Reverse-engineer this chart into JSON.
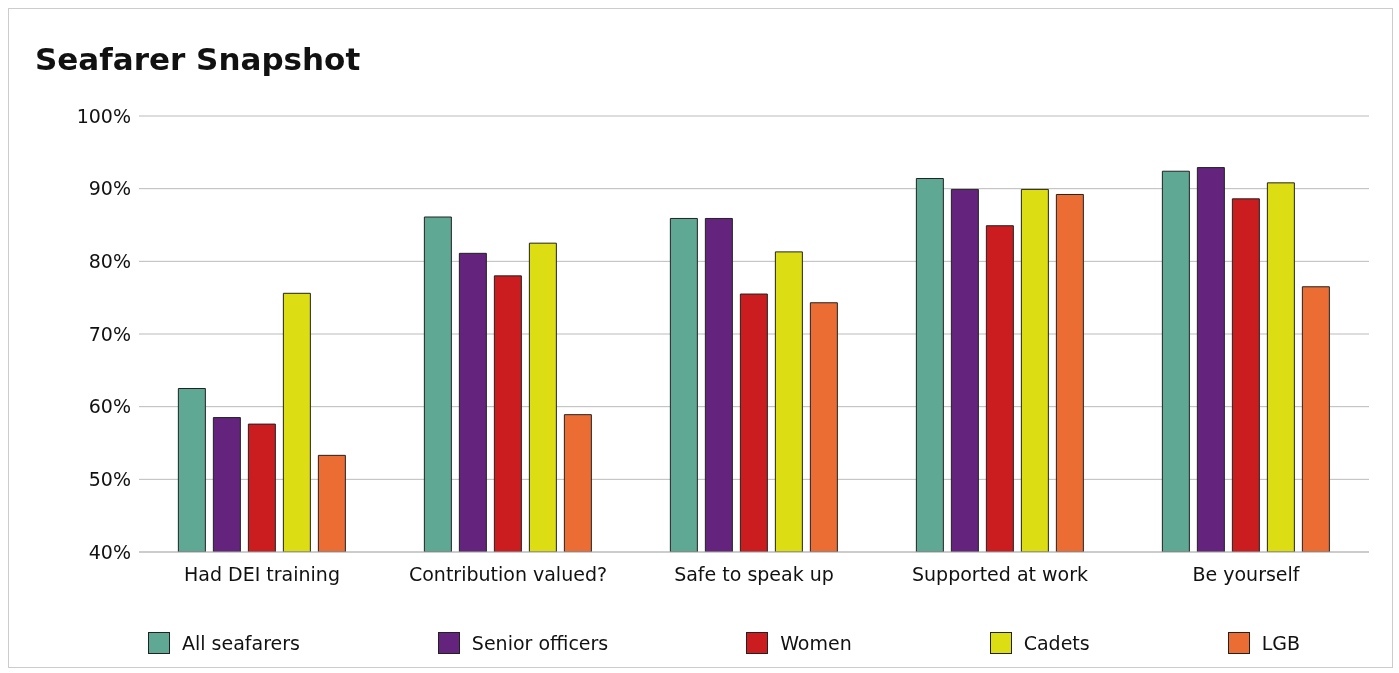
{
  "chart_data": {
    "type": "bar",
    "title": "Seafarer Snapshot",
    "categories": [
      "Had DEI training",
      "Contribution valued?",
      "Safe to speak up",
      "Supported at work",
      "Be yourself"
    ],
    "series": [
      {
        "name": "All seafarers",
        "color": "#5fa894",
        "values": [
          62.5,
          86.1,
          85.9,
          91.4,
          92.4
        ]
      },
      {
        "name": "Senior officers",
        "color": "#64237d",
        "values": [
          58.5,
          81.1,
          85.9,
          89.9,
          92.9
        ]
      },
      {
        "name": "Women",
        "color": "#cb1c1f",
        "values": [
          57.6,
          78.0,
          75.5,
          84.9,
          88.6
        ]
      },
      {
        "name": "Cadets",
        "color": "#dddd14",
        "values": [
          75.6,
          82.5,
          81.3,
          89.9,
          90.8
        ]
      },
      {
        "name": "LGB",
        "color": "#ec6d33",
        "values": [
          53.3,
          58.9,
          74.3,
          89.2,
          76.5
        ]
      }
    ],
    "ylim": [
      40,
      100
    ],
    "yticks": [
      {
        "value": 40,
        "label": "40%"
      },
      {
        "value": 50,
        "label": "50%"
      },
      {
        "value": 60,
        "label": "60%"
      },
      {
        "value": 70,
        "label": "70%"
      },
      {
        "value": 80,
        "label": "80%"
      },
      {
        "value": 90,
        "label": "90%"
      },
      {
        "value": 100,
        "label": "100%"
      }
    ],
    "grid": "y",
    "legend": "bottom"
  }
}
